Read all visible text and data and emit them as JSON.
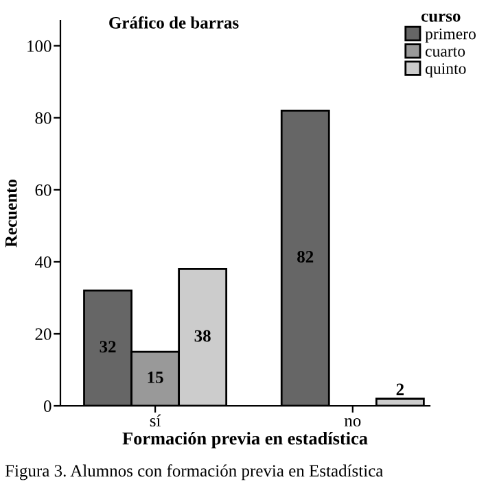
{
  "chart_data": {
    "type": "bar",
    "title": "Gráfico de barras",
    "xlabel": "Formación previa en estadística",
    "ylabel": "Recuento",
    "legend_title": "curso",
    "categories": [
      "sí",
      "no"
    ],
    "series": [
      {
        "name": "primero",
        "color": "#666666",
        "values": [
          32,
          82
        ]
      },
      {
        "name": "cuarto",
        "color": "#999999",
        "values": [
          15,
          null
        ]
      },
      {
        "name": "quinto",
        "color": "#cccccc",
        "values": [
          38,
          2
        ]
      }
    ],
    "ylim": [
      0,
      107
    ],
    "yticks": [
      0,
      20,
      40,
      60,
      80,
      100
    ],
    "grid": false,
    "legend": "top right",
    "data_labels": true,
    "annotations": [
      "Figura 3. Alumnos con formación previa en Estadística"
    ]
  }
}
